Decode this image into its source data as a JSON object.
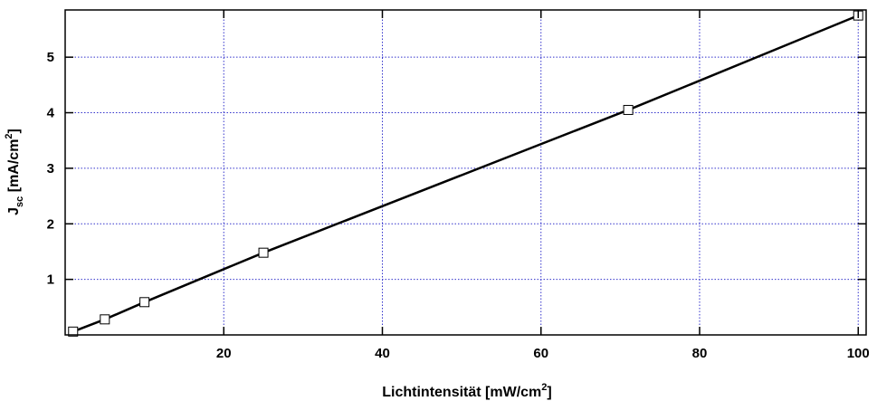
{
  "chart_data": {
    "type": "line",
    "xlabel": {
      "main": "Lichtintensität [mW/cm",
      "sup": "2",
      "tail": "]"
    },
    "ylabel": {
      "main": "J",
      "sub": "sc",
      "mid": " [mA/cm",
      "sup": "2",
      "tail": "]"
    },
    "xlim": [
      0,
      101
    ],
    "ylim": [
      0,
      5.85
    ],
    "xticks": [
      20,
      40,
      60,
      80,
      100
    ],
    "yticks": [
      1,
      2,
      3,
      4,
      5
    ],
    "grid": true,
    "series": [
      {
        "x": [
          1,
          5,
          10,
          25,
          71,
          100
        ],
        "y": [
          0.06,
          0.28,
          0.59,
          1.48,
          4.05,
          5.75
        ],
        "marker": "square",
        "line_color": "#000000"
      }
    ],
    "grid_color": "#3333cc"
  }
}
